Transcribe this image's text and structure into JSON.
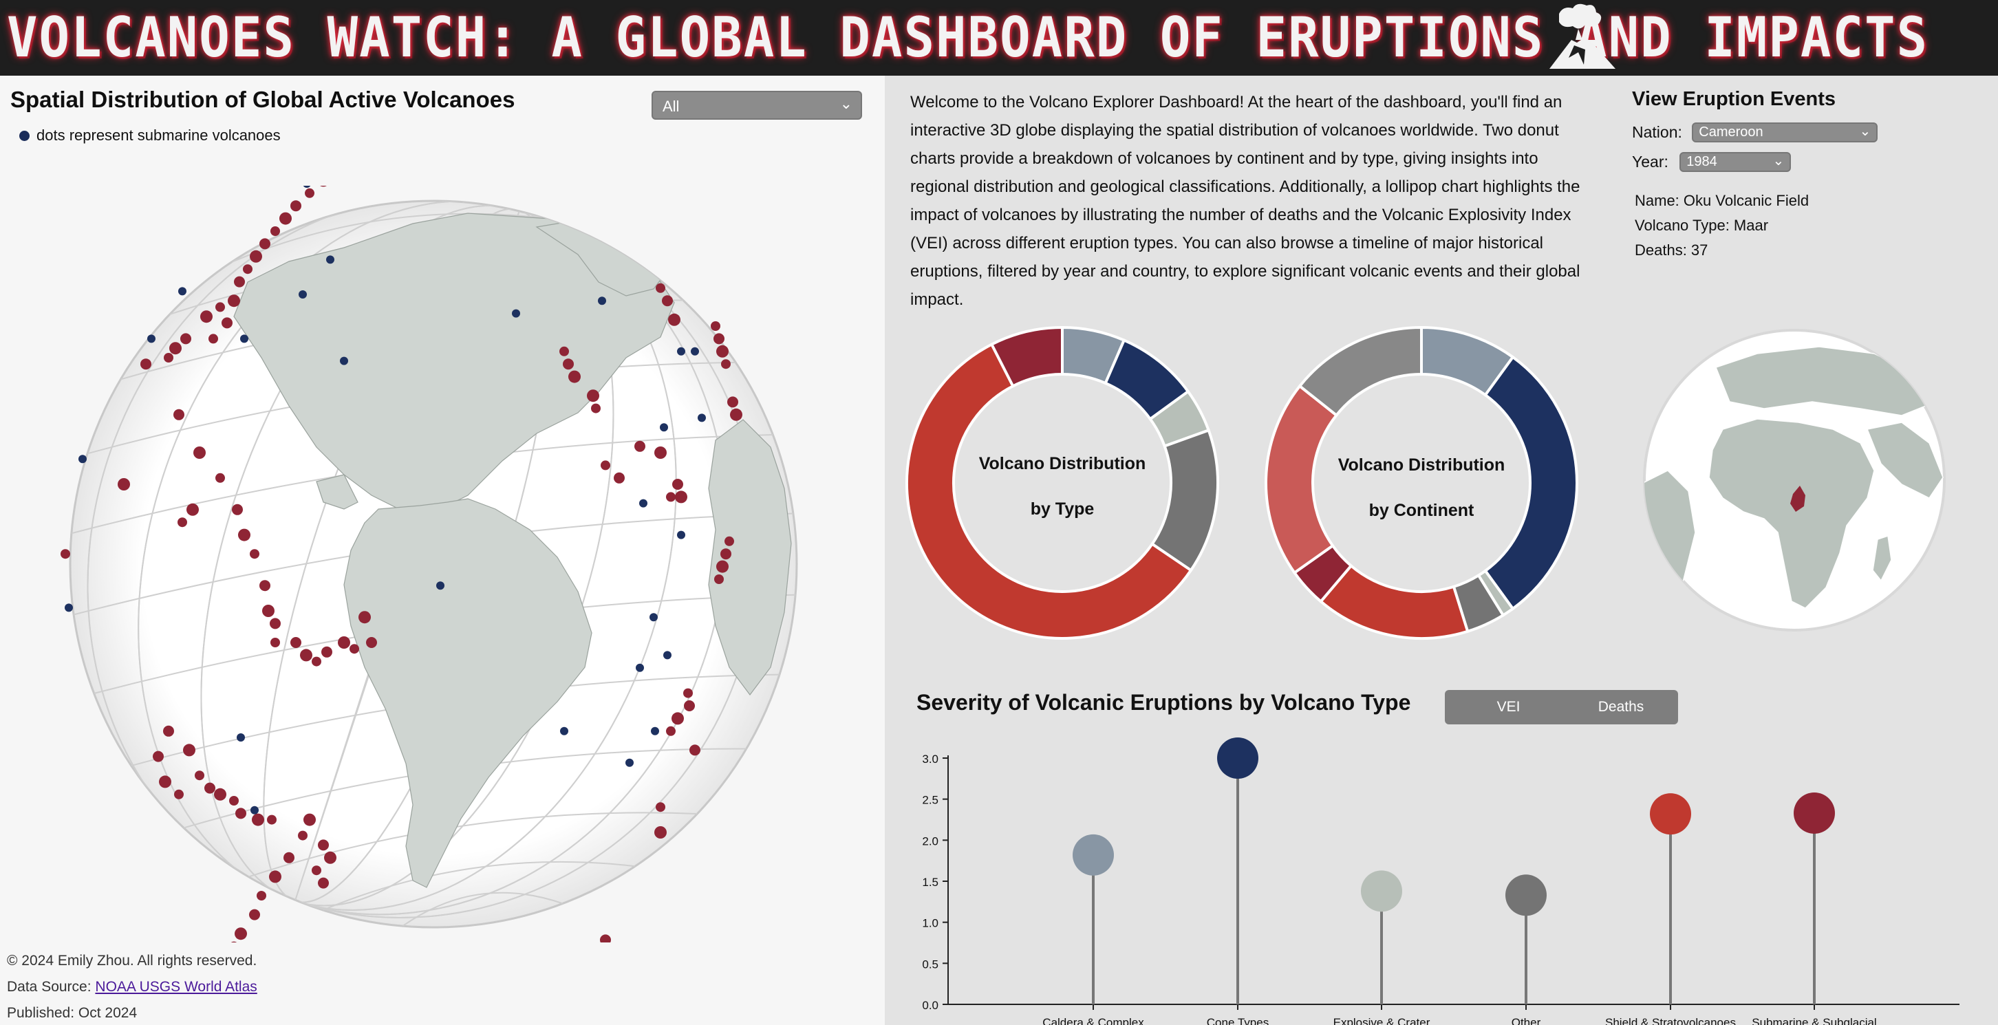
{
  "header": {
    "title": "VOLCANOES WATCH: A GLOBAL DASHBOARD OF ERUPTIONS AND IMPACTS",
    "logo_icon": "volcano-icon"
  },
  "left_panel": {
    "title": "Spatial Distribution of Global Active Volcanoes",
    "filter": {
      "selected": "All"
    },
    "legend_text": "dots represent submarine volcanoes",
    "footer": {
      "copyright": "© 2024 Emily Zhou. All rights reserved.",
      "source_label": "Data Source:",
      "source_link": "NOAA USGS World Atlas",
      "published": "Published: Oct 2024"
    }
  },
  "right_panel": {
    "intro": "Welcome to the Volcano Explorer Dashboard! At the heart of the dashboard, you'll find an interactive 3D globe displaying the spatial distribution of volcanoes worldwide. Two donut charts provide a breakdown of volcanoes by continent and by type, giving insights into regional distribution and geological classifications. Additionally, a lollipop chart highlights the impact of volcanoes by illustrating the number of deaths and the Volcanic Explosivity Index (VEI) across different eruption types. You can also browse a timeline of major historical eruptions, filtered by year and country, to explore significant volcanic events and their global impact.",
    "events": {
      "title": "View Eruption Events",
      "nation_label": "Nation:",
      "nation_value": "Cameroon",
      "year_label": "Year:",
      "year_value": "1984",
      "name_line": "Name: Oku Volcanic Field",
      "type_line": "Volcano Type: Maar",
      "deaths_line": "Deaths: 37"
    },
    "severity": {
      "title": "Severity of Volcanic Eruptions by Volcano Type",
      "vei_label": "VEI",
      "deaths_label": "Deaths"
    }
  },
  "colors": {
    "dark_red": "#8f2535",
    "red": "#c0392f",
    "light_red": "#c95a57",
    "navy": "#1d3160",
    "slate": "#8896a4",
    "sage": "#b7bfb8",
    "gray": "#747474",
    "gray2": "#888888",
    "land": "#cdd3cf"
  },
  "chart_data": [
    {
      "type": "pie",
      "title": "Volcano Distribution by Type",
      "title_lines": [
        "Volcano Distribution",
        "by Type"
      ],
      "slices": [
        {
          "value": 6.5,
          "color": "#8896a4"
        },
        {
          "value": 8.5,
          "color": "#1d3160"
        },
        {
          "value": 4.5,
          "color": "#b7bfb8"
        },
        {
          "value": 15,
          "color": "#747474"
        },
        {
          "value": 58,
          "color": "#c0392f"
        },
        {
          "value": 7.5,
          "color": "#8f2535"
        }
      ]
    },
    {
      "type": "pie",
      "title": "Volcano Distribution by Continent",
      "title_lines": [
        "Volcano Distribution",
        "by Continent"
      ],
      "slices": [
        {
          "value": 10,
          "color": "#8896a4"
        },
        {
          "value": 30,
          "color": "#1d3160"
        },
        {
          "value": 1.2,
          "color": "#b7bfb8"
        },
        {
          "value": 4,
          "color": "#747474"
        },
        {
          "value": 16,
          "color": "#c0392f"
        },
        {
          "value": 4,
          "color": "#8f2535"
        },
        {
          "value": 20.5,
          "color": "#c95a57"
        },
        {
          "value": 14.3,
          "color": "#888888"
        }
      ]
    },
    {
      "type": "scatter",
      "title": "Severity of Volcanic Eruptions by Volcano Type",
      "categories": [
        "Caldera & Complex",
        "Cone Types",
        "Explosive & Crater",
        "Other",
        "Shield & Stratovolcanoes",
        "Submarine & Subglacial"
      ],
      "values": [
        1.82,
        3.0,
        1.38,
        1.33,
        2.32,
        2.33
      ],
      "colors": [
        "#8896a4",
        "#1d3160",
        "#b7bfb8",
        "#747474",
        "#c0392f",
        "#8f2535"
      ],
      "yticks": [
        "0.0",
        "0.5",
        "1.0",
        "1.5",
        "2.0",
        "2.5",
        "3.0"
      ],
      "ylim": [
        0,
        3
      ]
    }
  ]
}
